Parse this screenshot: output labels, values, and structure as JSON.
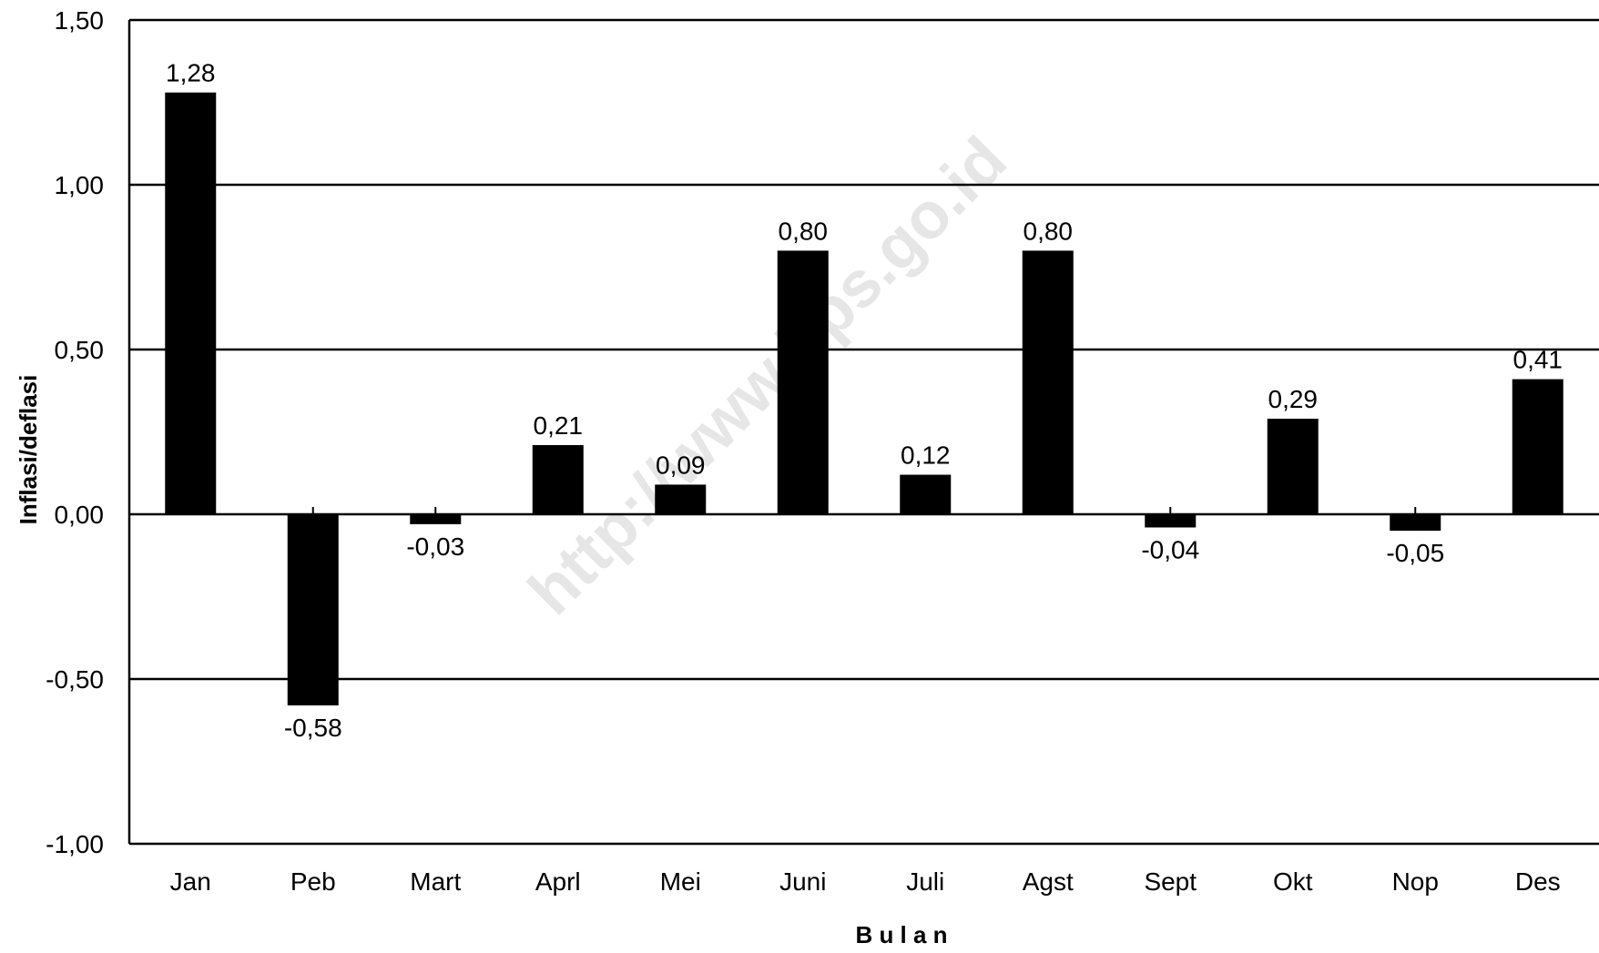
{
  "watermark": "http://www.bps.go.id",
  "chart_data": {
    "type": "bar",
    "categories": [
      "Jan",
      "Peb",
      "Mart",
      "Aprl",
      "Mei",
      "Juni",
      "Juli",
      "Agst",
      "Sept",
      "Okt",
      "Nop",
      "Des"
    ],
    "values": [
      1.28,
      -0.58,
      -0.03,
      0.21,
      0.09,
      0.8,
      0.12,
      0.8,
      -0.04,
      0.29,
      -0.05,
      0.41
    ],
    "data_labels": [
      "1,28",
      "-0,58",
      "-0,03",
      "0,21",
      "0,09",
      "0,80",
      "0,12",
      "0,80",
      "-0,04",
      "0,29",
      "-0,05",
      "0,41"
    ],
    "yticks": [
      1.5,
      1.0,
      0.5,
      0.0,
      -0.5,
      -1.0
    ],
    "ytick_labels": [
      "1,50",
      "1,00",
      "0,50",
      "0,00",
      "-0,50",
      "-1,00"
    ],
    "ylim": [
      -1.0,
      1.5
    ],
    "xlabel": "B u l a n",
    "ylabel": "Inflasi/deflasi",
    "grid": true,
    "bar_color": "#000000",
    "grid_color": "#000000"
  }
}
